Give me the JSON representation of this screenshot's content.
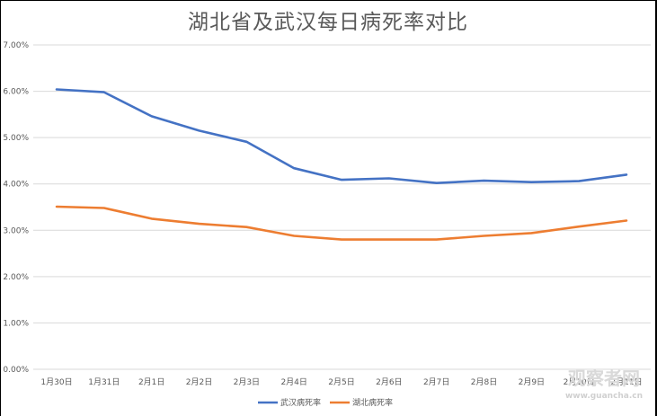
{
  "chart_data": {
    "type": "line",
    "title": "湖北省及武汉每日病死率对比",
    "xlabel": "",
    "ylabel": "",
    "ylim": [
      0,
      0.07
    ],
    "y_ticks": [
      "0.00%",
      "1.00%",
      "2.00%",
      "3.00%",
      "4.00%",
      "5.00%",
      "6.00%",
      "7.00%"
    ],
    "grid": true,
    "legend_position": "bottom",
    "categories": [
      "1月30日",
      "1月31日",
      "2月1日",
      "2月2日",
      "2月3日",
      "2月4日",
      "2月5日",
      "2月6日",
      "2月7日",
      "2月8日",
      "2月9日",
      "2月10日",
      "2月11日"
    ],
    "series": [
      {
        "name": "武汉病死率",
        "color": "#4472C4",
        "values": [
          0.0604,
          0.0598,
          0.0546,
          0.0515,
          0.0491,
          0.0434,
          0.0409,
          0.0412,
          0.0402,
          0.0407,
          0.0404,
          0.0406,
          0.042
        ]
      },
      {
        "name": "湖北病死率",
        "color": "#ED7D31",
        "values": [
          0.0351,
          0.0348,
          0.0325,
          0.0314,
          0.0307,
          0.0288,
          0.028,
          0.028,
          0.028,
          0.0288,
          0.0294,
          0.0308,
          0.0321
        ]
      }
    ]
  },
  "watermark": {
    "text": "观察者网",
    "url_text": "www.guancha.cn"
  }
}
